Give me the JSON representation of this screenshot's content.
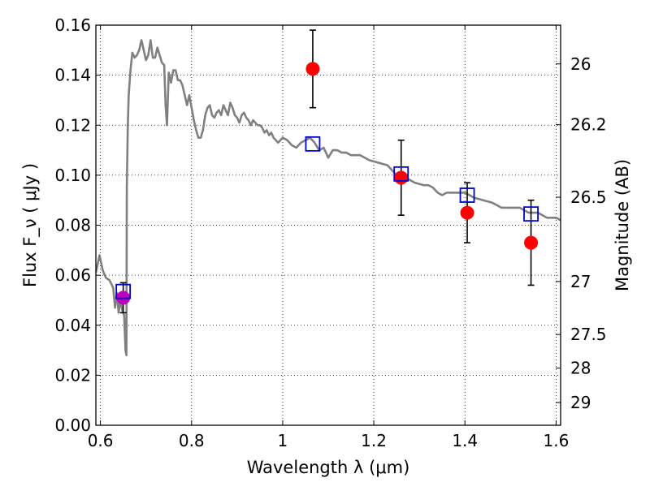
{
  "chart_data": {
    "type": "scatter",
    "xlabel": "Wavelength  λ (μm)",
    "ylabel": "Flux  F_ν  ( μJy )",
    "ylabel_right": "Magnitude (AB)",
    "xlim": [
      0.59,
      1.61
    ],
    "ylim": [
      0.0,
      0.16
    ],
    "grid": true,
    "x_ticks": [
      0.6,
      0.8,
      1.0,
      1.2,
      1.4,
      1.6
    ],
    "x_tick_labels": [
      "0.6",
      "0.8",
      "1",
      "1.2",
      "1.4",
      "1.6"
    ],
    "y_ticks": [
      0.0,
      0.02,
      0.04,
      0.06,
      0.08,
      0.1,
      0.12,
      0.14,
      0.16
    ],
    "y_tick_labels": [
      "0.00",
      "0.02",
      "0.04",
      "0.06",
      "0.08",
      "0.10",
      "0.12",
      "0.14",
      "0.16"
    ],
    "right_axis_ticks": [
      {
        "label": "26",
        "flux": 0.1445
      },
      {
        "label": "26.2",
        "flux": 0.1202
      },
      {
        "label": "26.5",
        "flux": 0.0912
      },
      {
        "label": "27",
        "flux": 0.0575
      },
      {
        "label": "27.5",
        "flux": 0.0363
      },
      {
        "label": "28",
        "flux": 0.0229
      },
      {
        "label": "29",
        "flux": 0.0091
      }
    ],
    "series": [
      {
        "type": "line",
        "color": "#808080",
        "points": [
          [
            0.59,
            0.061
          ],
          [
            0.598,
            0.068
          ],
          [
            0.605,
            0.062
          ],
          [
            0.612,
            0.059
          ],
          [
            0.62,
            0.058
          ],
          [
            0.628,
            0.055
          ],
          [
            0.632,
            0.047
          ],
          [
            0.636,
            0.053
          ],
          [
            0.64,
            0.045
          ],
          [
            0.644,
            0.05
          ],
          [
            0.648,
            0.046
          ],
          [
            0.652,
            0.044
          ],
          [
            0.655,
            0.03
          ],
          [
            0.657,
            0.028
          ],
          [
            0.658,
            0.095
          ],
          [
            0.66,
            0.12
          ],
          [
            0.662,
            0.132
          ],
          [
            0.666,
            0.142
          ],
          [
            0.67,
            0.149
          ],
          [
            0.675,
            0.147
          ],
          [
            0.68,
            0.148
          ],
          [
            0.685,
            0.15
          ],
          [
            0.69,
            0.154
          ],
          [
            0.695,
            0.15
          ],
          [
            0.7,
            0.146
          ],
          [
            0.705,
            0.148
          ],
          [
            0.71,
            0.154
          ],
          [
            0.715,
            0.147
          ],
          [
            0.72,
            0.147
          ],
          [
            0.725,
            0.151
          ],
          [
            0.73,
            0.148
          ],
          [
            0.735,
            0.145
          ],
          [
            0.74,
            0.144
          ],
          [
            0.743,
            0.128
          ],
          [
            0.746,
            0.12
          ],
          [
            0.75,
            0.141
          ],
          [
            0.755,
            0.137
          ],
          [
            0.76,
            0.142
          ],
          [
            0.765,
            0.142
          ],
          [
            0.77,
            0.138
          ],
          [
            0.775,
            0.138
          ],
          [
            0.78,
            0.136
          ],
          [
            0.785,
            0.132
          ],
          [
            0.79,
            0.128
          ],
          [
            0.795,
            0.132
          ],
          [
            0.8,
            0.127
          ],
          [
            0.805,
            0.122
          ],
          [
            0.81,
            0.118
          ],
          [
            0.815,
            0.115
          ],
          [
            0.82,
            0.115
          ],
          [
            0.825,
            0.118
          ],
          [
            0.83,
            0.124
          ],
          [
            0.835,
            0.127
          ],
          [
            0.84,
            0.128
          ],
          [
            0.845,
            0.124
          ],
          [
            0.85,
            0.123
          ],
          [
            0.855,
            0.125
          ],
          [
            0.86,
            0.126
          ],
          [
            0.865,
            0.124
          ],
          [
            0.87,
            0.128
          ],
          [
            0.875,
            0.126
          ],
          [
            0.88,
            0.124
          ],
          [
            0.885,
            0.129
          ],
          [
            0.89,
            0.127
          ],
          [
            0.895,
            0.124
          ],
          [
            0.9,
            0.123
          ],
          [
            0.905,
            0.121
          ],
          [
            0.91,
            0.124
          ],
          [
            0.915,
            0.125
          ],
          [
            0.92,
            0.123
          ],
          [
            0.925,
            0.122
          ],
          [
            0.93,
            0.12
          ],
          [
            0.935,
            0.122
          ],
          [
            0.94,
            0.121
          ],
          [
            0.945,
            0.12
          ],
          [
            0.95,
            0.12
          ],
          [
            0.955,
            0.119
          ],
          [
            0.96,
            0.117
          ],
          [
            0.965,
            0.118
          ],
          [
            0.97,
            0.116
          ],
          [
            0.975,
            0.117
          ],
          [
            0.98,
            0.115
          ],
          [
            0.985,
            0.114
          ],
          [
            0.99,
            0.113
          ],
          [
            1.0,
            0.115
          ],
          [
            1.01,
            0.114
          ],
          [
            1.02,
            0.112
          ],
          [
            1.03,
            0.111
          ],
          [
            1.04,
            0.113
          ],
          [
            1.05,
            0.114
          ],
          [
            1.06,
            0.115
          ],
          [
            1.07,
            0.113
          ],
          [
            1.08,
            0.11
          ],
          [
            1.09,
            0.111
          ],
          [
            1.1,
            0.107
          ],
          [
            1.11,
            0.11
          ],
          [
            1.12,
            0.11
          ],
          [
            1.13,
            0.109
          ],
          [
            1.14,
            0.109
          ],
          [
            1.15,
            0.108
          ],
          [
            1.17,
            0.108
          ],
          [
            1.19,
            0.106
          ],
          [
            1.21,
            0.105
          ],
          [
            1.23,
            0.104
          ],
          [
            1.25,
            0.1
          ],
          [
            1.27,
            0.099
          ],
          [
            1.29,
            0.097
          ],
          [
            1.31,
            0.096
          ],
          [
            1.32,
            0.096
          ],
          [
            1.33,
            0.095
          ],
          [
            1.34,
            0.093
          ],
          [
            1.35,
            0.092
          ],
          [
            1.36,
            0.093
          ],
          [
            1.38,
            0.093
          ],
          [
            1.4,
            0.093
          ],
          [
            1.42,
            0.091
          ],
          [
            1.44,
            0.09
          ],
          [
            1.46,
            0.089
          ],
          [
            1.48,
            0.087
          ],
          [
            1.5,
            0.087
          ],
          [
            1.52,
            0.087
          ],
          [
            1.54,
            0.085
          ],
          [
            1.56,
            0.085
          ],
          [
            1.58,
            0.083
          ],
          [
            1.6,
            0.083
          ],
          [
            1.61,
            0.082
          ]
        ]
      },
      {
        "type": "scatter",
        "marker": "circle",
        "color": "#ff0000",
        "points": [
          {
            "x": 1.066,
            "y": 0.1425,
            "err": 0.0155
          },
          {
            "x": 1.26,
            "y": 0.099,
            "err": 0.015
          },
          {
            "x": 1.405,
            "y": 0.085,
            "err": 0.012
          },
          {
            "x": 1.545,
            "y": 0.073,
            "err": 0.017
          }
        ]
      },
      {
        "type": "scatter",
        "marker": "circle",
        "color": "#bb00bb",
        "points": [
          {
            "x": 0.65,
            "y": 0.051,
            "err": 0.006
          }
        ]
      },
      {
        "type": "scatter",
        "marker": "square-open",
        "color": "#0000cc",
        "points": [
          {
            "x": 0.65,
            "y": 0.0535
          },
          {
            "x": 1.066,
            "y": 0.1125
          },
          {
            "x": 1.26,
            "y": 0.1005
          },
          {
            "x": 1.405,
            "y": 0.092
          },
          {
            "x": 1.545,
            "y": 0.0845
          }
        ]
      }
    ]
  }
}
